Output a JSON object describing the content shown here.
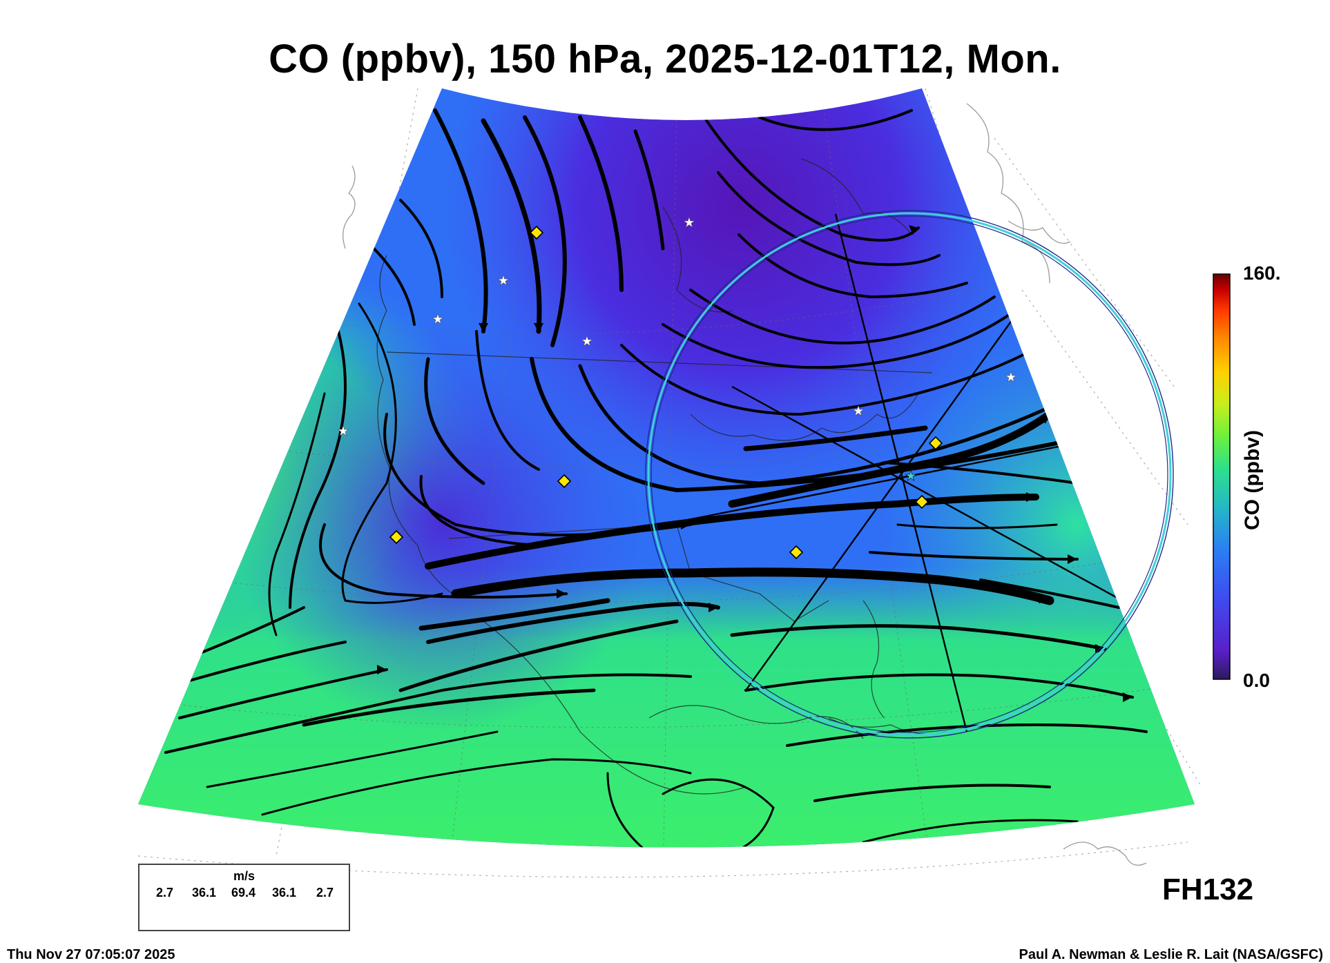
{
  "title": "CO (ppbv), 150 hPa, 2025-12-01T12, Mon.",
  "colorbar": {
    "label": "CO (ppbv)",
    "max_label": "160.",
    "min_label": "0.0",
    "range": [
      0,
      160
    ],
    "colors": [
      "#2c1a5e",
      "#5a1fc8",
      "#3e4cf0",
      "#2a7ff2",
      "#24b6c8",
      "#2ee08c",
      "#6ef03c",
      "#c8ee1c",
      "#ffd000",
      "#ff8a00",
      "#ff3a00",
      "#c80000",
      "#6a0000"
    ]
  },
  "forecast_hour": "FH132",
  "timestamp": "Thu Nov 27 07:05:07 2025",
  "credit": "Paul A. Newman & Leslie R. Lait (NASA/GSFC)",
  "wind_legend": {
    "unit": "m/s",
    "values": [
      "2.7",
      "36.1",
      "69.4",
      "36.1",
      "2.7"
    ]
  },
  "field_colors": {
    "low_co": "#5a1fc8",
    "mid_co": "#2f6ff5",
    "high_co": "#30e67f"
  },
  "markers": {
    "diamond_color": "#ffe600",
    "star_color": "#ffffff",
    "circle_color": "#3fd0d8"
  }
}
